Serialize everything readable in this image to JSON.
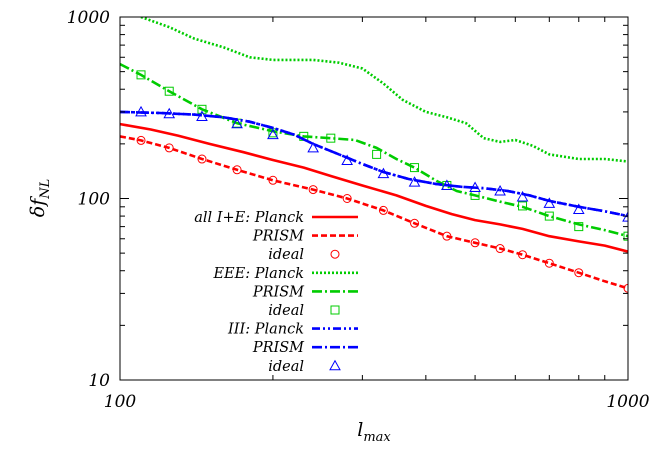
{
  "chart_data": {
    "type": "line",
    "xscale": "log",
    "yscale": "log",
    "xlim": [
      100,
      1000
    ],
    "ylim": [
      10,
      1000
    ],
    "grid": false,
    "legend_position": "bottom-left",
    "xlabel": {
      "main": "l",
      "sub": "max"
    },
    "ylabel": {
      "main": "δf",
      "sub": "NL"
    },
    "x_ticks": [
      {
        "value": 100,
        "label": "100"
      },
      {
        "value": 1000,
        "label": "1000"
      }
    ],
    "y_ticks": [
      {
        "value": 10,
        "label": "10"
      },
      {
        "value": 100,
        "label": "100"
      },
      {
        "value": 1000,
        "label": "1000"
      }
    ],
    "series": [
      {
        "name": "all I+E: Planck",
        "color": "#ff0000",
        "style": "solid",
        "x": [
          100,
          115,
          130,
          150,
          175,
          200,
          230,
          260,
          300,
          350,
          400,
          450,
          500,
          560,
          620,
          700,
          800,
          900,
          1000
        ],
        "y": [
          257,
          240,
          222,
          200,
          180,
          163,
          148,
          133,
          118,
          104,
          91,
          82,
          76,
          72,
          68,
          62,
          58,
          55,
          51
        ]
      },
      {
        "name": "PRISM",
        "color": "#ff0000",
        "style": "dashed",
        "x": [
          100,
          110,
          125,
          145,
          170,
          200,
          240,
          280,
          330,
          380,
          440,
          500,
          560,
          620,
          700,
          800,
          900,
          1000
        ],
        "y": [
          220,
          209,
          190,
          165,
          144,
          126,
          112,
          100,
          86,
          73,
          62,
          57,
          53,
          49,
          44,
          39,
          35,
          32
        ]
      },
      {
        "name": "ideal",
        "color": "#ff0000",
        "style": "marker",
        "marker": "circle",
        "x": [
          110,
          125,
          145,
          170,
          200,
          240,
          280,
          330,
          380,
          440,
          500,
          560,
          620,
          700,
          800,
          1000
        ],
        "y": [
          209,
          190,
          165,
          144,
          126,
          112,
          100,
          86,
          73,
          62,
          57,
          53,
          49,
          44,
          39,
          32
        ]
      },
      {
        "name": "EEE: Planck",
        "color": "#00cc00",
        "style": "dotted",
        "x": [
          110,
          125,
          140,
          160,
          180,
          200,
          220,
          240,
          270,
          300,
          330,
          360,
          400,
          440,
          480,
          520,
          560,
          600,
          650,
          700,
          800,
          900,
          1000
        ],
        "y": [
          1000,
          880,
          760,
          680,
          600,
          580,
          580,
          580,
          560,
          520,
          430,
          350,
          300,
          280,
          260,
          215,
          205,
          210,
          195,
          175,
          165,
          165,
          160
        ]
      },
      {
        "name": "PRISM",
        "color": "#00cc00",
        "style": "dashdot",
        "x": [
          100,
          110,
          125,
          145,
          170,
          200,
          230,
          260,
          290,
          320,
          350,
          380,
          420,
          460,
          500,
          560,
          620,
          700,
          800,
          900,
          1000
        ],
        "y": [
          550,
          480,
          390,
          310,
          260,
          235,
          220,
          215,
          210,
          190,
          165,
          148,
          125,
          110,
          104,
          96,
          90,
          80,
          72,
          67,
          62
        ]
      },
      {
        "name": "ideal",
        "color": "#00cc00",
        "style": "marker",
        "marker": "square",
        "x": [
          110,
          125,
          145,
          170,
          200,
          230,
          260,
          320,
          380,
          440,
          500,
          620,
          700,
          800,
          1000
        ],
        "y": [
          480,
          390,
          310,
          260,
          230,
          220,
          215,
          175,
          148,
          118,
          104,
          91,
          80,
          70,
          62
        ]
      },
      {
        "name": "III: Planck",
        "color": "#0000ff",
        "style": "dashdotdot",
        "x": [
          100,
          120,
          140,
          160,
          180,
          200,
          220,
          240,
          270,
          300,
          330,
          370,
          420,
          470,
          520,
          580,
          640,
          700,
          800,
          900,
          1000
        ],
        "y": [
          300,
          296,
          290,
          280,
          265,
          245,
          225,
          200,
          175,
          155,
          140,
          128,
          120,
          116,
          114,
          110,
          104,
          97,
          90,
          85,
          80
        ]
      },
      {
        "name": "PRISM",
        "color": "#0000ff",
        "style": "dashdot",
        "x": [
          100,
          120,
          140,
          160,
          180,
          200,
          220,
          240,
          270,
          300,
          330,
          370,
          420,
          470,
          520,
          580,
          640,
          700,
          800,
          900,
          1000
        ],
        "y": [
          300,
          296,
          290,
          280,
          265,
          245,
          225,
          200,
          175,
          155,
          140,
          128,
          120,
          116,
          114,
          110,
          104,
          97,
          90,
          85,
          80
        ]
      },
      {
        "name": "ideal",
        "color": "#0000ff",
        "style": "marker",
        "marker": "triangle",
        "x": [
          110,
          125,
          145,
          170,
          200,
          240,
          280,
          330,
          380,
          440,
          500,
          560,
          620,
          700,
          800,
          1000
        ],
        "y": [
          300,
          293,
          283,
          258,
          225,
          190,
          162,
          137,
          123,
          118,
          115,
          110,
          102,
          94,
          87,
          79
        ]
      }
    ]
  }
}
